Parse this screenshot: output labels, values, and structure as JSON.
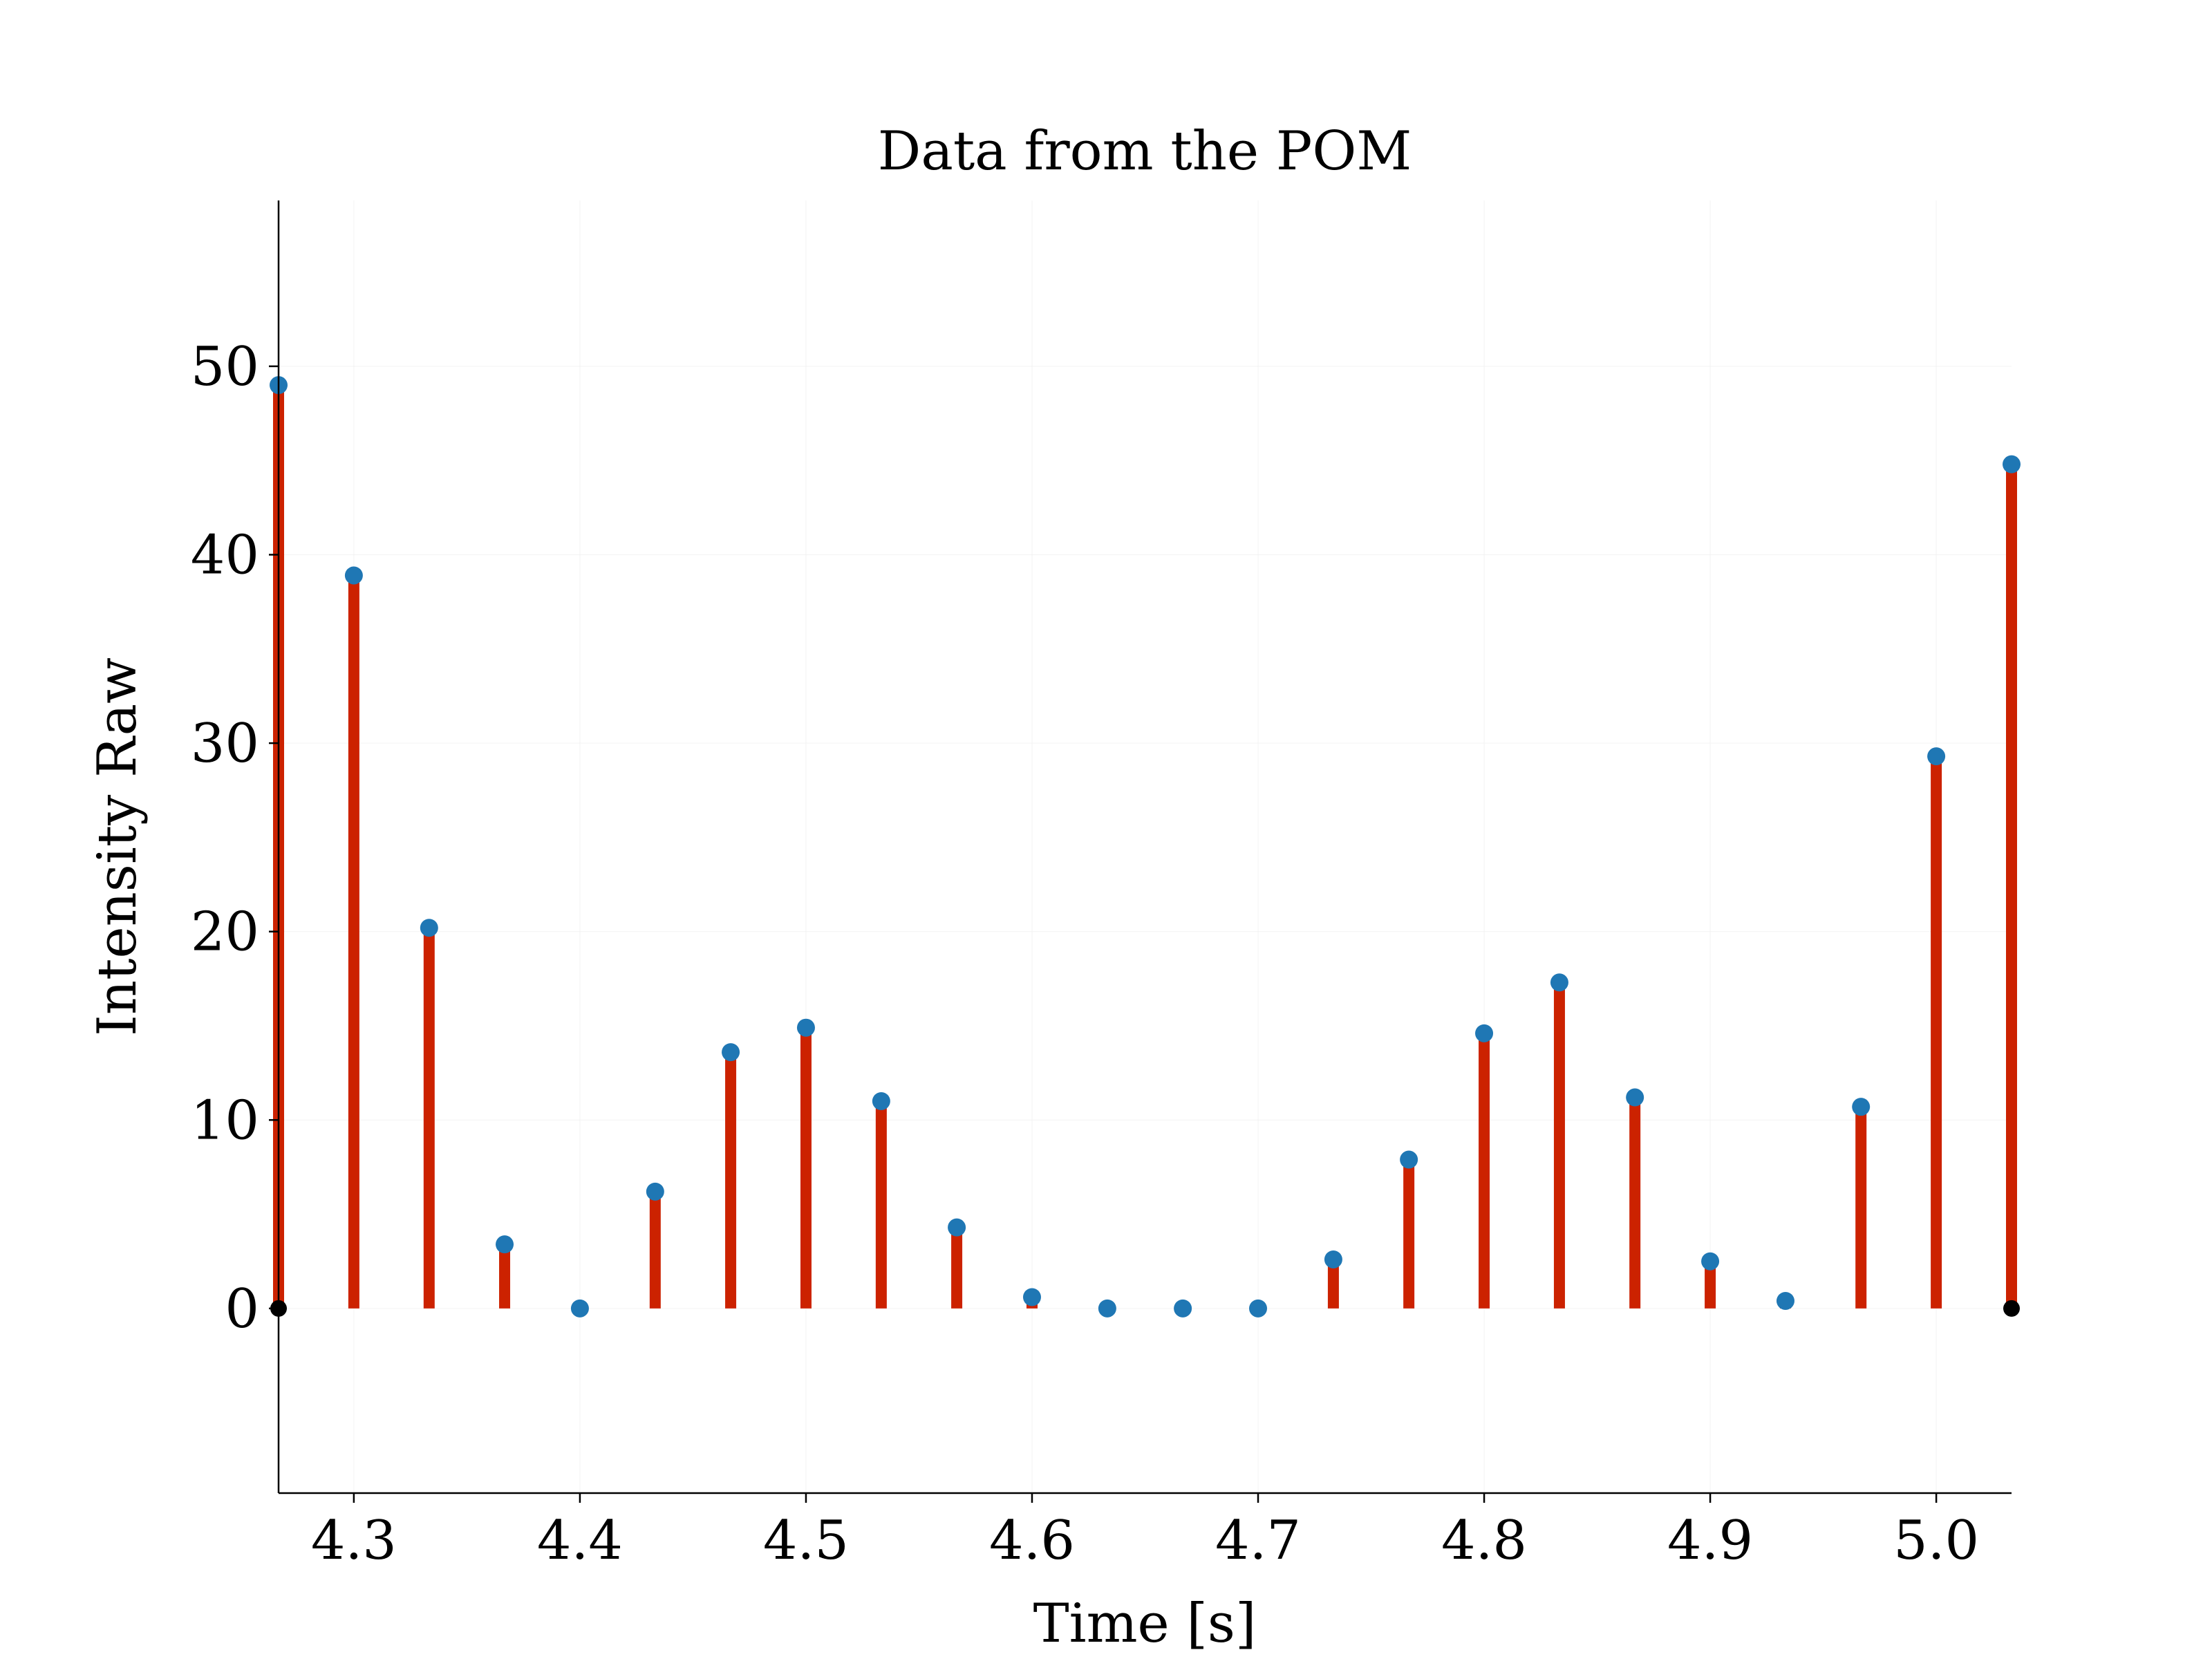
{
  "chart_data": {
    "type": "stem",
    "title": "Data from the POM",
    "xlabel": "Time [s]",
    "ylabel": "Intensity Raw",
    "xlim": [
      4.2667,
      5.0333
    ],
    "ylim": [
      -9.8,
      58.8
    ],
    "xticks": [
      4.3,
      4.4,
      4.5,
      4.6,
      4.7,
      4.8,
      4.9,
      5.0
    ],
    "xtick_labels": [
      "4.3",
      "4.4",
      "4.5",
      "4.6",
      "4.7",
      "4.8",
      "4.9",
      "5.0"
    ],
    "yticks": [
      0,
      10,
      20,
      30,
      40,
      50
    ],
    "ytick_labels": [
      "0",
      "10",
      "20",
      "30",
      "40",
      "50"
    ],
    "grid": true,
    "colors": {
      "stem": "#cc2200",
      "marker": "#1f77b4",
      "baseline_marker": "#000000"
    },
    "x": [
      4.2667,
      4.3,
      4.3333,
      4.3667,
      4.4,
      4.4333,
      4.4667,
      4.5,
      4.5333,
      4.5667,
      4.6,
      4.6333,
      4.6667,
      4.7,
      4.7333,
      4.7667,
      4.8,
      4.8333,
      4.8667,
      4.9,
      4.9333,
      4.9667,
      5.0,
      5.0333
    ],
    "values": [
      49.0,
      38.9,
      20.2,
      3.4,
      0.0,
      6.2,
      13.6,
      14.9,
      11.0,
      4.3,
      0.6,
      0.0,
      0.0,
      0.0,
      2.6,
      7.9,
      14.6,
      17.3,
      11.2,
      2.5,
      0.4,
      10.7,
      29.3,
      44.8
    ]
  }
}
